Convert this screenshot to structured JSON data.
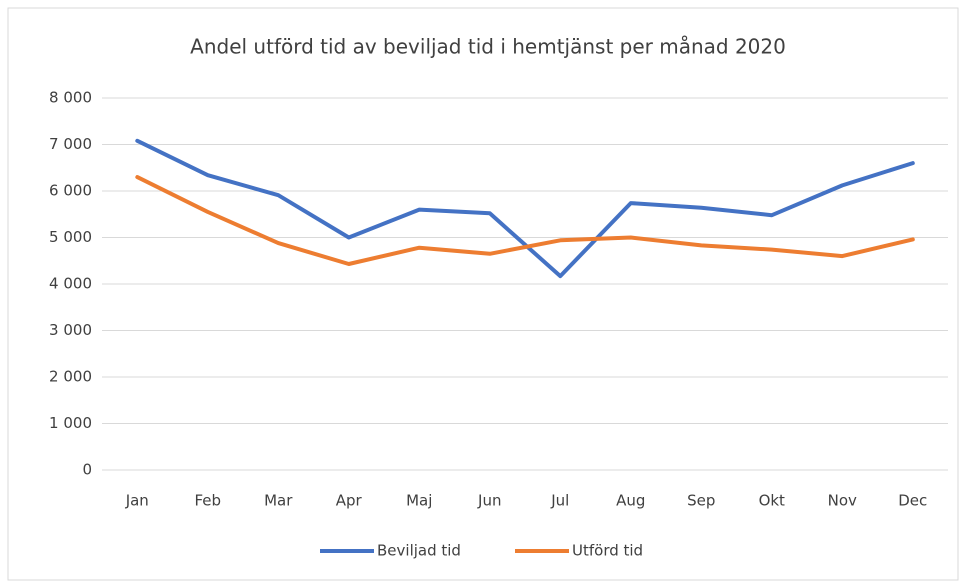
{
  "chart_data": {
    "type": "line",
    "title": "Andel  utförd tid av beviljad tid i hemtjänst per månad 2020",
    "categories": [
      "Jan",
      "Feb",
      "Mar",
      "Apr",
      "Maj",
      "Jun",
      "Jul",
      "Aug",
      "Sep",
      "Okt",
      "Nov",
      "Dec"
    ],
    "series": [
      {
        "name": "Beviljad tid",
        "color": "#4472c4",
        "values": [
          7080,
          6340,
          5910,
          5000,
          5600,
          5520,
          4170,
          5740,
          5640,
          5480,
          6120,
          6600
        ]
      },
      {
        "name": "Utförd tid",
        "color": "#ed7d31",
        "values": [
          6300,
          5550,
          4880,
          4430,
          4780,
          4650,
          4940,
          5000,
          4830,
          4740,
          4600,
          4960
        ]
      }
    ],
    "ylim": [
      0,
      8000
    ],
    "yticks": [
      0,
      {
        "value": 1000,
        "label": "1 000"
      },
      {
        "value": 2000,
        "label": "2 000"
      },
      {
        "value": 3000,
        "label": "3 000"
      },
      {
        "value": 4000,
        "label": "4 000"
      },
      {
        "value": 5000,
        "label": "5 000"
      },
      {
        "value": 6000,
        "label": "6 000"
      },
      {
        "value": 7000,
        "label": "7 000"
      },
      {
        "value": 8000,
        "label": "8 000"
      }
    ],
    "grid": true,
    "legend": "bottom"
  }
}
